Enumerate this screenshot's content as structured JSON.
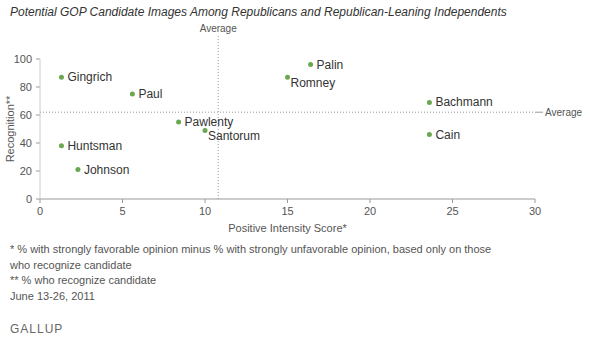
{
  "chart_data": {
    "type": "scatter",
    "title": "Potential GOP Candidate Images Among Republicans and Republican-Leaning Independents",
    "x_label": "Positive Intensity Score*",
    "y_label": "Recognition**",
    "labels": [
      "Gingrich",
      "Paul",
      "Palin",
      "Romney",
      "Bachmann",
      "Pawlenty",
      "Santorum",
      "Cain",
      "Huntsman",
      "Johnson"
    ],
    "x": [
      1.3,
      5.6,
      16.4,
      15,
      23.6,
      8.4,
      10,
      23.6,
      1.3,
      2.3
    ],
    "values": [
      87,
      75,
      96,
      87,
      69,
      55,
      49,
      46,
      38,
      21
    ],
    "color": "#6aa84f",
    "marker": "circle",
    "averages": {
      "x": 10.8,
      "y": 62,
      "label": "Average"
    },
    "xlim": [
      0,
      30
    ],
    "xticks": [
      0,
      5,
      10,
      15,
      20,
      25,
      30
    ],
    "ylim": [
      0,
      100
    ],
    "yticks": [
      0,
      20,
      40,
      60,
      80,
      100
    ],
    "grid": false,
    "notes": [
      "* % with strongly favorable opinion minus % with strongly unfavorable opinion, based only on those",
      "who recognize candidate",
      "** % who recognize candidate",
      "June 13-26, 2011"
    ],
    "source": "GALLUP"
  }
}
